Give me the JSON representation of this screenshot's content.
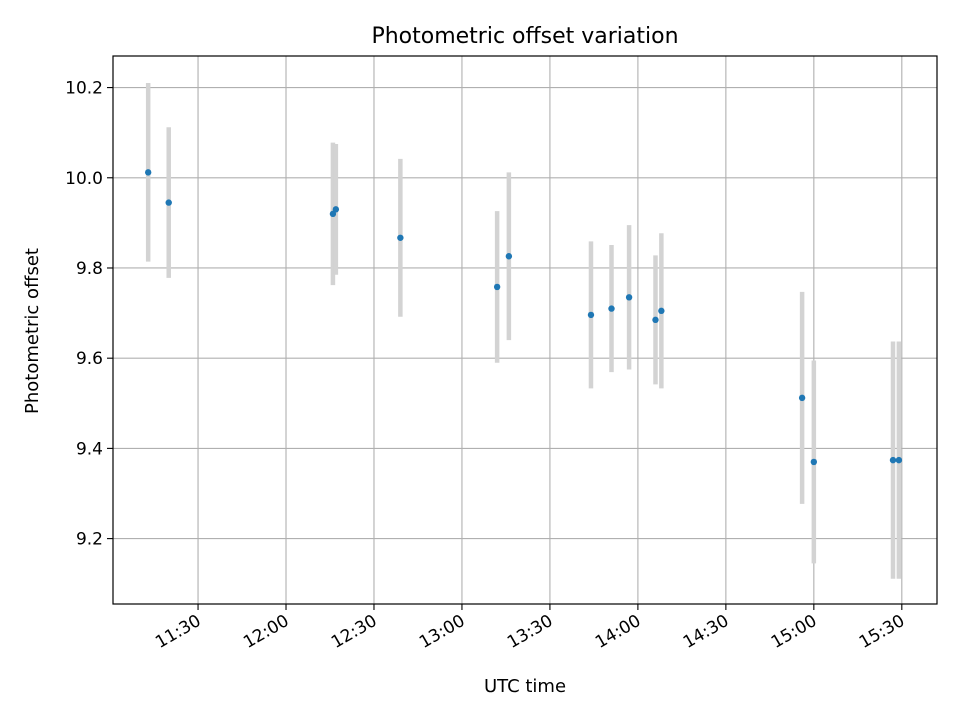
{
  "chart_data": {
    "type": "scatter",
    "title": "Photometric offset variation",
    "xlabel": "UTC time",
    "ylabel": "Photometric offset",
    "x_ticks": [
      "11:30",
      "12:00",
      "12:30",
      "13:00",
      "13:30",
      "14:00",
      "14:30",
      "15:00",
      "15:30"
    ],
    "y_ticks": [
      "9.2",
      "9.4",
      "9.6",
      "9.8",
      "10.0",
      "10.2"
    ],
    "xlim": [
      "11:01",
      "15:42"
    ],
    "ylim": [
      9.055,
      10.27
    ],
    "grid": true,
    "colors": {
      "points": "#1f77b4",
      "errorbars": "#d3d3d3",
      "grid": "#b0b0b0"
    },
    "points": [
      {
        "x": "11:13",
        "y": 10.012,
        "err": 0.198
      },
      {
        "x": "11:20",
        "y": 9.945,
        "err": 0.167
      },
      {
        "x": "12:16",
        "y": 9.92,
        "err": 0.158
      },
      {
        "x": "12:17",
        "y": 9.93,
        "err": 0.145
      },
      {
        "x": "12:39",
        "y": 9.867,
        "err": 0.175
      },
      {
        "x": "13:12",
        "y": 9.758,
        "err": 0.168
      },
      {
        "x": "13:16",
        "y": 9.826,
        "err": 0.186
      },
      {
        "x": "13:44",
        "y": 9.696,
        "err": 0.163
      },
      {
        "x": "13:51",
        "y": 9.71,
        "err": 0.141
      },
      {
        "x": "13:57",
        "y": 9.735,
        "err": 0.16
      },
      {
        "x": "14:06",
        "y": 9.685,
        "err": 0.143
      },
      {
        "x": "14:08",
        "y": 9.705,
        "err": 0.172
      },
      {
        "x": "14:56",
        "y": 9.512,
        "err": 0.235
      },
      {
        "x": "15:00",
        "y": 9.37,
        "err": 0.225
      },
      {
        "x": "15:27",
        "y": 9.374,
        "err": 0.263
      },
      {
        "x": "15:29",
        "y": 9.374,
        "err": 0.263
      }
    ]
  }
}
